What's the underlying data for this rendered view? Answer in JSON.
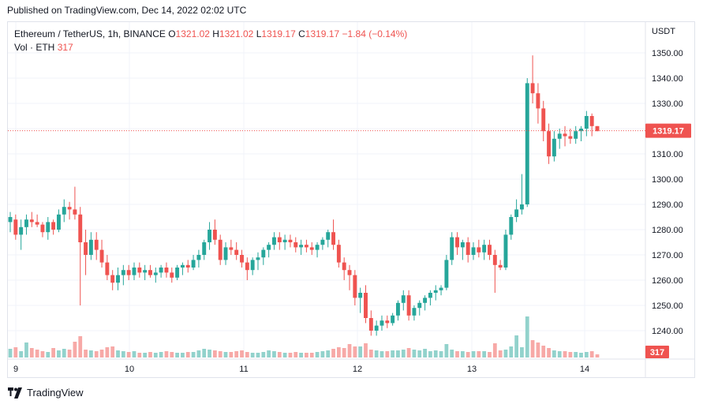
{
  "header": {
    "published": "Published on TradingView.com, Dec 14, 2022 02:02 UTC"
  },
  "legend": {
    "symbol": "Ethereum / TetherUS, 1h, BINANCE",
    "open_label": "O",
    "open": "1321.02",
    "high_label": "H",
    "high": "1321.02",
    "low_label": "L",
    "low": "1319.17",
    "close_label": "C",
    "close": "1319.17",
    "change": "−1.84 (−0.14%)",
    "vol_label": "Vol · ETH",
    "vol": "317"
  },
  "currency": "USDT",
  "footer": {
    "brand": "TradingView"
  },
  "colors": {
    "up": "#26a69a",
    "down": "#ef5350",
    "up_vol": "#92d2cc",
    "down_vol": "#f7a9a7",
    "grid": "#f0f3fa"
  },
  "chart_data": {
    "type": "candlestick",
    "y_axis": {
      "range": [
        1233,
        1352
      ],
      "ticks": [
        "1240.00",
        "1250.00",
        "1260.00",
        "1270.00",
        "1280.00",
        "1290.00",
        "1300.00",
        "1310.00",
        "1320.00",
        "1330.00",
        "1340.00",
        "1350.00"
      ]
    },
    "x_axis": {
      "ticks": [
        "9",
        "10",
        "11",
        "12",
        "13",
        "14"
      ]
    },
    "last_price": "1319.17",
    "last_volume": "317",
    "series": [
      {
        "name": "ETH/USDT",
        "ohlc": [
          [
            1283,
            1287,
            1279,
            1285
          ],
          [
            1284,
            1286,
            1276,
            1278
          ],
          [
            1278,
            1284,
            1272,
            1281
          ],
          [
            1281,
            1286,
            1278,
            1284
          ],
          [
            1284,
            1287,
            1281,
            1283
          ],
          [
            1283,
            1286,
            1281,
            1282
          ],
          [
            1282,
            1283,
            1277,
            1279
          ],
          [
            1279,
            1285,
            1276,
            1283
          ],
          [
            1283,
            1284,
            1278,
            1280
          ],
          [
            1280,
            1288,
            1279,
            1286
          ],
          [
            1286,
            1292,
            1283,
            1289
          ],
          [
            1289,
            1291,
            1284,
            1288
          ],
          [
            1288,
            1297,
            1284,
            1286
          ],
          [
            1286,
            1289,
            1250,
            1275
          ],
          [
            1275,
            1280,
            1262,
            1270
          ],
          [
            1270,
            1279,
            1268,
            1276
          ],
          [
            1276,
            1279,
            1268,
            1272
          ],
          [
            1272,
            1276,
            1265,
            1267
          ],
          [
            1267,
            1270,
            1260,
            1262
          ],
          [
            1262,
            1264,
            1256,
            1259
          ],
          [
            1259,
            1265,
            1256,
            1262
          ],
          [
            1262,
            1266,
            1258,
            1264
          ],
          [
            1264,
            1266,
            1260,
            1262
          ],
          [
            1262,
            1267,
            1260,
            1265
          ],
          [
            1265,
            1267,
            1261,
            1263
          ],
          [
            1263,
            1266,
            1260,
            1264
          ],
          [
            1264,
            1266,
            1261,
            1262
          ],
          [
            1262,
            1265,
            1259,
            1263
          ],
          [
            1263,
            1266,
            1261,
            1265
          ],
          [
            1265,
            1267,
            1261,
            1263
          ],
          [
            1263,
            1265,
            1259,
            1261
          ],
          [
            1261,
            1266,
            1260,
            1265
          ],
          [
            1265,
            1267,
            1262,
            1266
          ],
          [
            1266,
            1268,
            1263,
            1265
          ],
          [
            1265,
            1270,
            1264,
            1268
          ],
          [
            1268,
            1272,
            1265,
            1270
          ],
          [
            1270,
            1276,
            1268,
            1275
          ],
          [
            1275,
            1283,
            1272,
            1280
          ],
          [
            1280,
            1284,
            1274,
            1276
          ],
          [
            1276,
            1278,
            1266,
            1268
          ],
          [
            1268,
            1275,
            1266,
            1273
          ],
          [
            1273,
            1276,
            1270,
            1272
          ],
          [
            1272,
            1275,
            1268,
            1270
          ],
          [
            1270,
            1272,
            1265,
            1267
          ],
          [
            1267,
            1269,
            1260,
            1264
          ],
          [
            1264,
            1269,
            1262,
            1268
          ],
          [
            1268,
            1271,
            1264,
            1269
          ],
          [
            1269,
            1273,
            1266,
            1272
          ],
          [
            1272,
            1275,
            1269,
            1274
          ],
          [
            1274,
            1279,
            1272,
            1277
          ],
          [
            1277,
            1279,
            1272,
            1275
          ],
          [
            1275,
            1278,
            1272,
            1276
          ],
          [
            1276,
            1278,
            1273,
            1275
          ],
          [
            1275,
            1277,
            1271,
            1273
          ],
          [
            1273,
            1276,
            1270,
            1274
          ],
          [
            1274,
            1276,
            1271,
            1273
          ],
          [
            1273,
            1275,
            1270,
            1272
          ],
          [
            1272,
            1275,
            1269,
            1274
          ],
          [
            1274,
            1277,
            1272,
            1276
          ],
          [
            1276,
            1280,
            1273,
            1279
          ],
          [
            1279,
            1284,
            1272,
            1274
          ],
          [
            1274,
            1276,
            1265,
            1267
          ],
          [
            1267,
            1269,
            1260,
            1264
          ],
          [
            1264,
            1266,
            1256,
            1262
          ],
          [
            1262,
            1264,
            1250,
            1253
          ],
          [
            1253,
            1257,
            1247,
            1255
          ],
          [
            1255,
            1258,
            1243,
            1245
          ],
          [
            1245,
            1248,
            1238,
            1240
          ],
          [
            1240,
            1244,
            1238,
            1242
          ],
          [
            1242,
            1246,
            1240,
            1244
          ],
          [
            1244,
            1246,
            1241,
            1243
          ],
          [
            1243,
            1247,
            1242,
            1246
          ],
          [
            1246,
            1252,
            1244,
            1251
          ],
          [
            1251,
            1256,
            1248,
            1254
          ],
          [
            1254,
            1256,
            1244,
            1246
          ],
          [
            1246,
            1250,
            1244,
            1249
          ],
          [
            1249,
            1252,
            1246,
            1251
          ],
          [
            1251,
            1254,
            1248,
            1253
          ],
          [
            1253,
            1256,
            1250,
            1255
          ],
          [
            1255,
            1258,
            1252,
            1256
          ],
          [
            1256,
            1258,
            1254,
            1257
          ],
          [
            1257,
            1270,
            1256,
            1268
          ],
          [
            1268,
            1279,
            1266,
            1277
          ],
          [
            1277,
            1279,
            1270,
            1273
          ],
          [
            1273,
            1276,
            1268,
            1275
          ],
          [
            1275,
            1277,
            1267,
            1270
          ],
          [
            1270,
            1275,
            1268,
            1273
          ],
          [
            1273,
            1276,
            1269,
            1271
          ],
          [
            1271,
            1276,
            1268,
            1274
          ],
          [
            1274,
            1276,
            1268,
            1270
          ],
          [
            1270,
            1272,
            1255,
            1266
          ],
          [
            1266,
            1268,
            1264,
            1265
          ],
          [
            1265,
            1280,
            1264,
            1278
          ],
          [
            1278,
            1286,
            1276,
            1285
          ],
          [
            1285,
            1292,
            1283,
            1288
          ],
          [
            1288,
            1302,
            1286,
            1290
          ],
          [
            1290,
            1340,
            1289,
            1338
          ],
          [
            1338,
            1349,
            1330,
            1334
          ],
          [
            1334,
            1338,
            1322,
            1328
          ],
          [
            1328,
            1331,
            1315,
            1319
          ],
          [
            1319,
            1322,
            1306,
            1309
          ],
          [
            1309,
            1319,
            1307,
            1316
          ],
          [
            1316,
            1320,
            1312,
            1318
          ],
          [
            1318,
            1321,
            1313,
            1317
          ],
          [
            1317,
            1320,
            1314,
            1316
          ],
          [
            1316,
            1321,
            1314,
            1319
          ],
          [
            1319,
            1321,
            1315,
            1320
          ],
          [
            1320,
            1327,
            1317,
            1325
          ],
          [
            1325,
            1326,
            1317,
            1321
          ],
          [
            1321,
            1321,
            1319,
            1319
          ]
        ],
        "volume": [
          11,
          13,
          8,
          19,
          12,
          10,
          8,
          7,
          12,
          9,
          11,
          10,
          20,
          27,
          10,
          9,
          8,
          10,
          13,
          14,
          9,
          8,
          7,
          8,
          6,
          6,
          7,
          6,
          7,
          8,
          7,
          6,
          6,
          7,
          7,
          9,
          11,
          10,
          9,
          8,
          7,
          7,
          8,
          9,
          7,
          6,
          6,
          7,
          9,
          8,
          7,
          6,
          6,
          7,
          6,
          6,
          6,
          7,
          8,
          9,
          11,
          13,
          12,
          17,
          14,
          14,
          18,
          10,
          9,
          8,
          8,
          9,
          9,
          10,
          12,
          10,
          9,
          11,
          8,
          9,
          8,
          17,
          10,
          8,
          8,
          7,
          8,
          8,
          8,
          7,
          18,
          9,
          10,
          14,
          28,
          13,
          52,
          22,
          19,
          15,
          12,
          9,
          8,
          8,
          7,
          7,
          6,
          7,
          8,
          4
        ]
      }
    ]
  }
}
